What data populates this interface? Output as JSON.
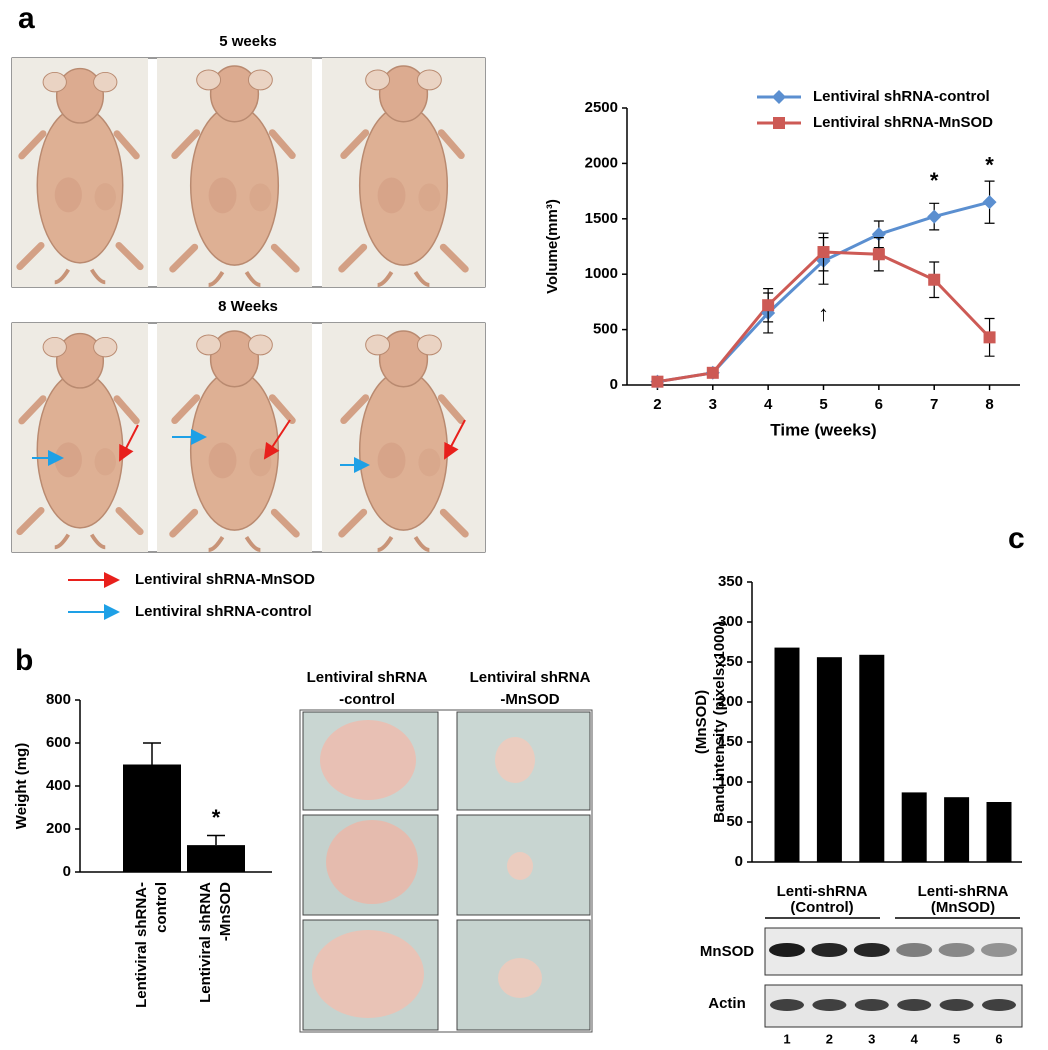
{
  "figure": {
    "panel_labels": [
      "a",
      "b",
      "c"
    ],
    "photo_titles": [
      "5 weeks",
      "8 Weeks"
    ],
    "arrow_legend": [
      "Lentiviral shRNA-MnSOD",
      "Lentiviral shRNA-control"
    ],
    "tumor_headers": [
      [
        "Lentiviral shRNA",
        "-control"
      ],
      [
        "Lentiviral shRNA",
        "-MnSOD"
      ]
    ],
    "blot": {
      "groups": [
        [
          "Lenti-shRNA",
          "(Control)"
        ],
        [
          "Lenti-shRNA",
          "(MnSOD)"
        ]
      ],
      "rows": [
        "MnSOD",
        "Actin"
      ]
    }
  },
  "chart_data": [
    {
      "type": "line",
      "y_label": "Volume(mm³)",
      "x_label": "Time (weeks)",
      "x": [
        2,
        3,
        4,
        5,
        6,
        7,
        8
      ],
      "xlim": [
        1.45,
        8.55
      ],
      "xticks": [
        2,
        3,
        4,
        5,
        6,
        7,
        8
      ],
      "ylim": [
        0,
        2500
      ],
      "yticks": [
        0,
        500,
        1000,
        1500,
        2000,
        2500
      ],
      "series": [
        {
          "name": "Lentiviral shRNA-control",
          "color": "#5b8fd0",
          "marker": "diamond",
          "values": [
            30,
            110,
            650,
            1120,
            1360,
            1520,
            1650
          ],
          "errors": [
            null,
            null,
            180,
            210,
            120,
            120,
            190
          ]
        },
        {
          "name": "Lentiviral shRNA-MnSOD",
          "color": "#cd5a55",
          "marker": "square",
          "values": [
            30,
            110,
            720,
            1200,
            1180,
            950,
            430
          ],
          "errors": [
            null,
            null,
            150,
            170,
            150,
            160,
            170
          ]
        }
      ],
      "annotations": [
        {
          "text": "↑",
          "x": 5,
          "y": 630
        },
        {
          "text": "*",
          "x": 7,
          "y": 1830
        },
        {
          "text": "*",
          "x": 8,
          "y": 1970
        }
      ]
    },
    {
      "type": "bar",
      "y_label": "Weight (mg)",
      "categories": [
        [
          "Lentiviral shRNA-",
          "control"
        ],
        [
          "Lentiviral shRNA",
          "-MnSOD"
        ]
      ],
      "values": [
        500,
        125
      ],
      "errors": [
        100,
        45
      ],
      "color": "#000000",
      "ylim": [
        0,
        800
      ],
      "yticks": [
        0,
        200,
        400,
        600,
        800
      ],
      "annotations": [
        {
          "text": "*",
          "category": 1,
          "y": 245
        }
      ]
    },
    {
      "type": "bar",
      "y_label": [
        "(MnSOD)",
        "Band intensity (pixelsx1000)"
      ],
      "categories": [
        "1",
        "2",
        "3",
        "4",
        "5",
        "6"
      ],
      "values": [
        268,
        256,
        259,
        87,
        81,
        75
      ],
      "color": "#000000",
      "ylim": [
        0,
        350
      ],
      "yticks": [
        0,
        50,
        100,
        150,
        200,
        250,
        300,
        350
      ]
    }
  ]
}
